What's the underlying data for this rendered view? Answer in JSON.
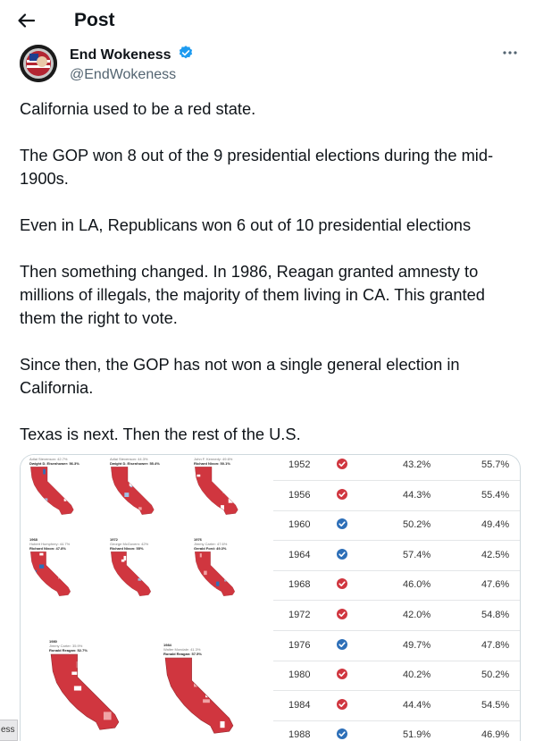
{
  "header": {
    "title": "Post",
    "back_icon": "arrow-left-icon"
  },
  "author": {
    "display_name": "End Wokeness",
    "handle": "@EndWokeness",
    "verified_color": "#1d9bf0"
  },
  "tweet": {
    "paragraphs": [
      "California used to be a red state.",
      "The GOP won 8 out of the 9 presidential elections during the mid-1900s.",
      "Even in LA, Republicans won 6 out of 10 presidential elections",
      "Then something changed. In 1986, Reagan granted amnesty to millions of illegals, the majority of them living in CA. This granted them the right to vote.",
      "Since then, the GOP has not won a single general election in California.",
      "Texas is next. Then the rest of the U.S."
    ]
  },
  "maps": [
    {
      "year": "",
      "loser": "Adlai Stevenson: 42.7%",
      "winner": "Dwight D. Eisenhower: 56.3%",
      "party": "R"
    },
    {
      "year": "",
      "loser": "Adlai Stevenson: 44.3%",
      "winner": "Dwight D. Eisenhower: 55.4%",
      "party": "R"
    },
    {
      "year": "",
      "loser": "John F. Kennedy: 49.6%",
      "winner": "Richard Nixon: 50.1%",
      "party": "R"
    },
    {
      "year": "1968",
      "loser": "Hubert Humphrey: 44.7%",
      "winner": "Richard Nixon: 47.8%",
      "party": "R"
    },
    {
      "year": "1972",
      "loser": "George McGovern: 42%",
      "winner": "Richard Nixon: 55%",
      "party": "R"
    },
    {
      "year": "1976",
      "loser": "Jimmy Carter: 47.6%",
      "winner": "Gerald Ford: 49.3%",
      "party": "R"
    },
    {
      "year": "1980",
      "loser": "Jimmy Carter: 35.9%",
      "winner": "Ronald Reagan: 52.7%",
      "party": "R"
    },
    {
      "year": "1984",
      "loser": "Walter Mondale: 41.3%",
      "winner": "Ronald Reagan: 57.5%",
      "party": "R"
    }
  ],
  "results_table": [
    {
      "year": "1952",
      "winner": "R",
      "a": "43.2%",
      "b": "55.7%"
    },
    {
      "year": "1956",
      "winner": "R",
      "a": "44.3%",
      "b": "55.4%"
    },
    {
      "year": "1960",
      "winner": "D",
      "a": "50.2%",
      "b": "49.4%"
    },
    {
      "year": "1964",
      "winner": "D",
      "a": "57.4%",
      "b": "42.5%"
    },
    {
      "year": "1968",
      "winner": "R",
      "a": "46.0%",
      "b": "47.6%"
    },
    {
      "year": "1972",
      "winner": "R",
      "a": "42.0%",
      "b": "54.8%"
    },
    {
      "year": "1976",
      "winner": "D",
      "a": "49.7%",
      "b": "47.8%"
    },
    {
      "year": "1980",
      "winner": "R",
      "a": "40.2%",
      "b": "50.2%"
    },
    {
      "year": "1984",
      "winner": "R",
      "a": "44.4%",
      "b": "54.5%"
    },
    {
      "year": "1988",
      "winner": "D",
      "a": "51.9%",
      "b": "46.9%"
    }
  ],
  "colors": {
    "republican": "#d0363f",
    "democrat": "#2d6fb8",
    "rep_light": "#f0a4a6",
    "dem_light": "#9fc3e6"
  },
  "side_tab": {
    "label": "ess"
  }
}
